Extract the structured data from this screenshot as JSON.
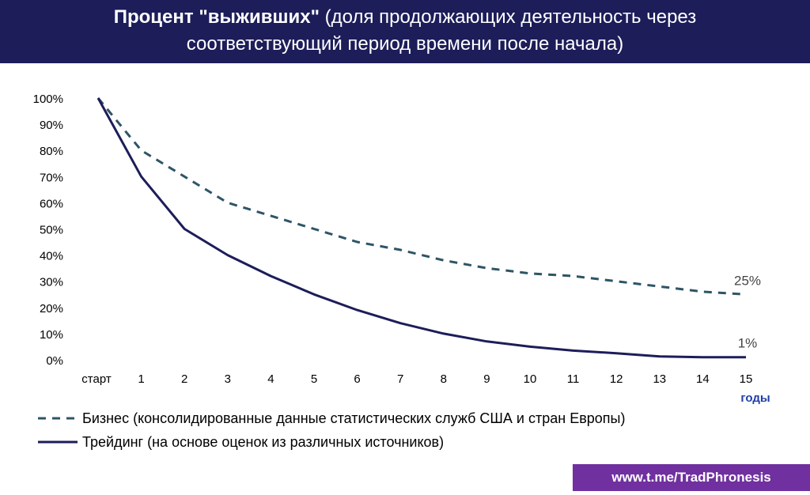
{
  "header": {
    "title_bold": "Процент \"выживших\"",
    "title_rest": " (доля продолжающих деятельность через",
    "title_line2": "соответствующий период времени после начала)"
  },
  "chart_data": {
    "type": "line",
    "categories": [
      "старт",
      "1",
      "2",
      "3",
      "4",
      "5",
      "6",
      "7",
      "8",
      "9",
      "10",
      "11",
      "12",
      "13",
      "14",
      "15"
    ],
    "xlabel": "годы",
    "ylabel": "",
    "ylim": [
      0,
      100
    ],
    "yticks": [
      "0%",
      "10%",
      "20%",
      "30%",
      "40%",
      "50%",
      "60%",
      "70%",
      "80%",
      "90%",
      "100%"
    ],
    "grid": false,
    "legend_position": "bottom-left",
    "series": [
      {
        "name": "Бизнес (консолидированные данные статистических служб США и стран Европы)",
        "style": "dashed",
        "color": "#2e5566",
        "values": [
          100,
          80,
          70,
          60,
          55,
          50,
          45,
          42,
          38,
          35,
          33,
          32,
          30,
          28,
          26,
          25
        ],
        "end_label": "25%"
      },
      {
        "name": "Трейдинг (на основе оценок из различных источников)",
        "style": "solid",
        "color": "#1d1d5a",
        "values": [
          100,
          70,
          50,
          40,
          32,
          25,
          19,
          14,
          10,
          7,
          5,
          3.5,
          2.5,
          1.3,
          1,
          1
        ],
        "end_label": "1%"
      }
    ]
  },
  "footer": {
    "badge": "www.t.me/TradPhronesis"
  }
}
